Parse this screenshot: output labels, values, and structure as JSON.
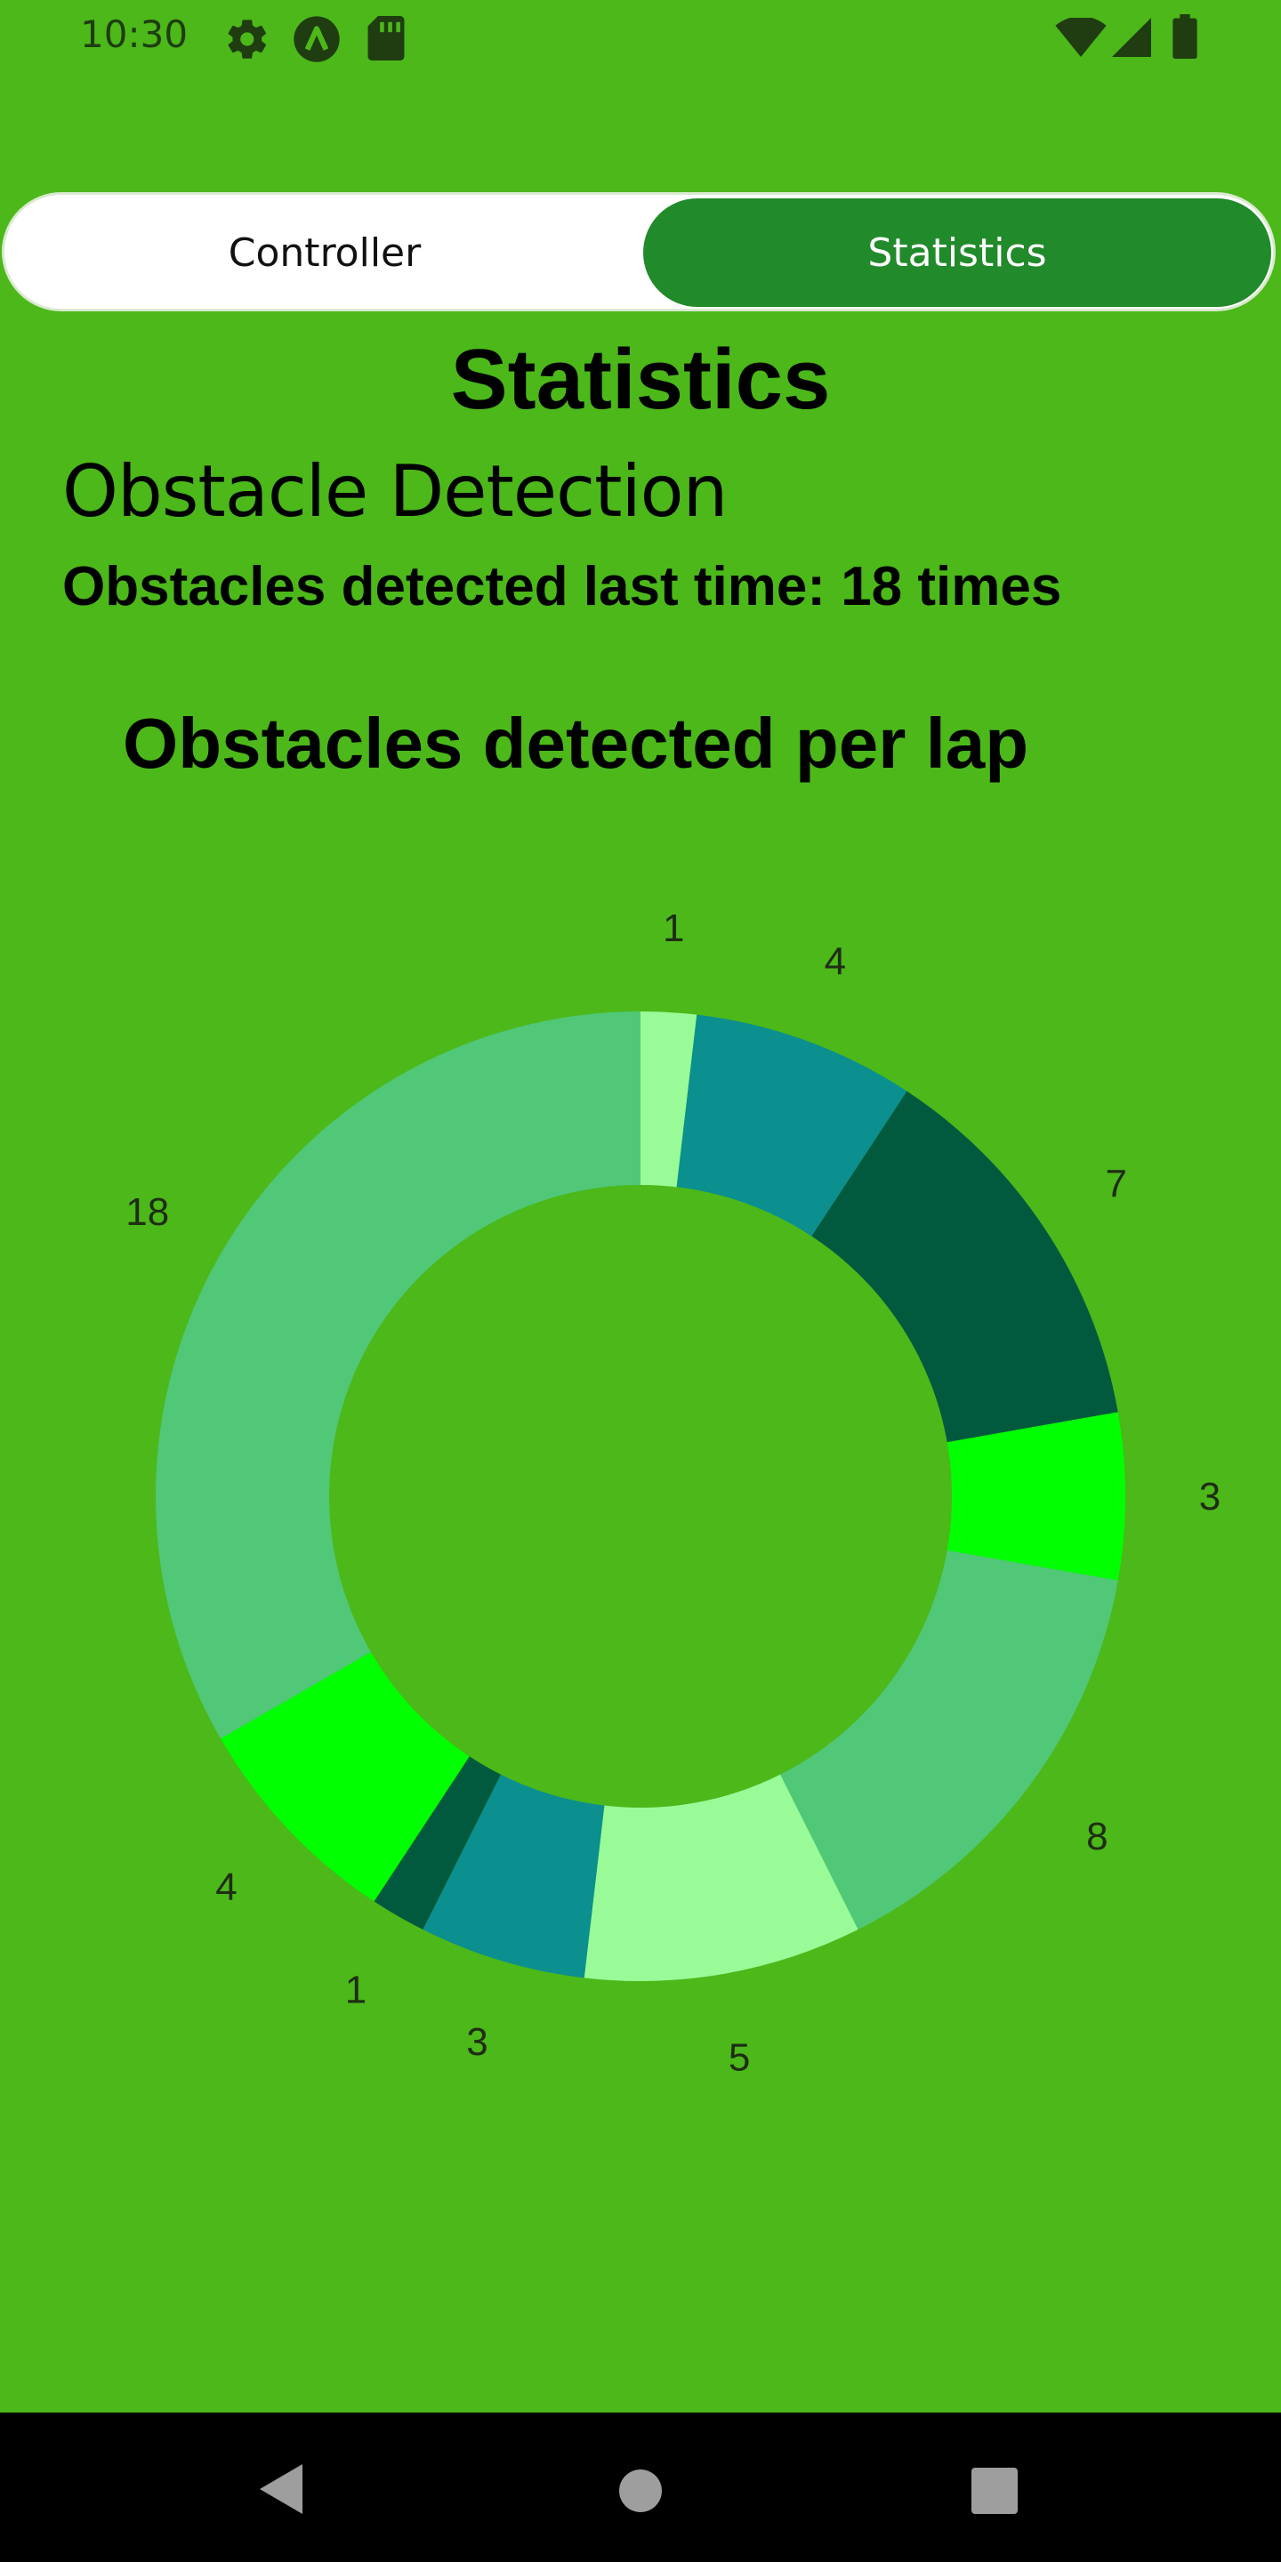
{
  "status_bar": {
    "time": "10:30",
    "icons": [
      "gear-icon",
      "app-a-icon",
      "sd-card-icon",
      "wifi-icon",
      "signal-icon",
      "battery-icon"
    ]
  },
  "tabs": [
    {
      "label": "Controller",
      "selected": false
    },
    {
      "label": "Statistics",
      "selected": true
    }
  ],
  "page": {
    "title": "Statistics",
    "section_title": "Obstacle Detection",
    "summary": "Obstacles detected last time: 18 times"
  },
  "colors": {
    "background": "#4cb81a",
    "tab_selected": "#218a2a",
    "tab_unselected": "#ffffff"
  },
  "chart_data": {
    "type": "pie",
    "variant": "donut",
    "title": "Obstacles detected per lap",
    "values": [
      1,
      4,
      7,
      3,
      8,
      5,
      3,
      1,
      4,
      18
    ],
    "colors": [
      "#98fb98",
      "#0b8f8f",
      "#015a3e",
      "#00ff00",
      "#50c878",
      "#98fb98",
      "#0b8f8f",
      "#015a3e",
      "#00ff00",
      "#50c878"
    ],
    "labels": [
      "1",
      "4",
      "7",
      "3",
      "8",
      "5",
      "3",
      "1",
      "4",
      "18"
    ]
  },
  "nav_bar": {
    "buttons": [
      "back-icon",
      "home-icon",
      "recents-icon"
    ]
  }
}
